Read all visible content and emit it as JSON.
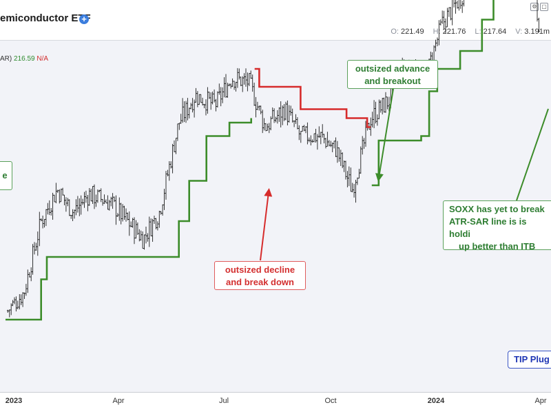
{
  "header": {
    "title": "emiconductor ETF",
    "ohlc": {
      "open_label": "O:",
      "open": "221.49",
      "high_label": "H:",
      "high": "221.76",
      "low_label": "L:",
      "low": "217.64",
      "volume_label": "V:",
      "volume": "3.191m"
    }
  },
  "indicator": {
    "name": "AR)",
    "value": "216.59",
    "na": "N/A"
  },
  "annotations": {
    "advance": [
      "outsized advance",
      "and breakout"
    ],
    "decline": [
      "outsized decline",
      "and break down"
    ],
    "soxx": [
      "SOXX has yet to break",
      "ATR-SAR line is is holdi",
      "up better than ITB"
    ],
    "left_fragment": [
      "e"
    ],
    "tip": "TIP Plug"
  },
  "colors": {
    "background": "#f2f3f8",
    "price": "#1a1a1a",
    "sar_green": "#3c8c2a",
    "sar_red": "#d62b2b",
    "annot_green": "#2e7d32",
    "annot_red": "#d32f2f",
    "annot_blue": "#1e35b4"
  },
  "chart_data": {
    "type": "line",
    "title": "emiconductor ETF",
    "xlabel": "",
    "ylabel": "",
    "x_ticks": [
      "2023",
      "Apr",
      "Jul",
      "Oct",
      "2024",
      "Apr"
    ],
    "series": [
      {
        "name": "",
        "style": "ohlc-bars",
        "values": [
          [
            "2023-01-03",
            158
          ],
          [
            "2023-01-17",
            162
          ],
          [
            "2023-02-01",
            178
          ],
          [
            "2023-02-15",
            185
          ],
          [
            "2023-03-01",
            180
          ],
          [
            "2023-03-15",
            184
          ],
          [
            "2023-04-03",
            182
          ],
          [
            "2023-04-17",
            178
          ],
          [
            "2023-05-01",
            174
          ],
          [
            "2023-05-15",
            180
          ],
          [
            "2023-06-01",
            200
          ],
          [
            "2023-06-15",
            206
          ],
          [
            "2023-07-03",
            204
          ],
          [
            "2023-07-17",
            210
          ],
          [
            "2023-08-01",
            209
          ],
          [
            "2023-08-15",
            199
          ],
          [
            "2023-09-01",
            203
          ],
          [
            "2023-09-15",
            197
          ],
          [
            "2023-10-02",
            197
          ],
          [
            "2023-10-16",
            194
          ],
          [
            "2023-10-30",
            185
          ],
          [
            "2023-11-15",
            201
          ],
          [
            "2023-12-01",
            205
          ],
          [
            "2023-12-15",
            213
          ],
          [
            "2024-01-02",
            210
          ],
          [
            "2024-01-16",
            222
          ],
          [
            "2024-02-01",
            228
          ],
          [
            "2024-02-15",
            233
          ],
          [
            "2024-03-01",
            240
          ],
          [
            "2024-03-15",
            242
          ],
          [
            "2024-04-01",
            240
          ],
          [
            "2024-04-10",
            219
          ]
        ]
      },
      {
        "name": "",
        "style": "stepped-green",
        "values": [
          [
            "2023-01-01",
            156
          ],
          [
            "2023-01-25",
            156
          ],
          [
            "2023-02-01",
            165
          ],
          [
            "2023-02-06",
            170
          ],
          [
            "2023-03-31",
            170
          ],
          [
            "2023-05-18",
            170
          ],
          [
            "2023-06-01",
            178
          ],
          [
            "2023-06-10",
            187
          ],
          [
            "2023-06-25",
            197
          ],
          [
            "2023-07-15",
            200
          ],
          [
            "2023-08-03",
            201
          ]
        ]
      },
      {
        "name": "",
        "style": "stepped-red",
        "values": [
          [
            "2023-08-06",
            212
          ],
          [
            "2023-08-10",
            208
          ],
          [
            "2023-09-05",
            208
          ],
          [
            "2023-09-15",
            203
          ],
          [
            "2023-10-25",
            201
          ],
          [
            "2023-11-12",
            199
          ],
          [
            "2023-11-15",
            199
          ]
        ]
      },
      {
        "name": "",
        "style": "stepped-green",
        "values": [
          [
            "2023-11-16",
            186
          ],
          [
            "2023-11-22",
            196
          ],
          [
            "2023-12-29",
            197
          ],
          [
            "2024-01-05",
            207
          ],
          [
            "2024-01-12",
            212
          ],
          [
            "2024-02-01",
            216
          ],
          [
            "2024-02-20",
            223
          ],
          [
            "2024-03-01",
            230
          ],
          [
            "2024-03-10",
            234
          ],
          [
            "2024-03-15",
            234
          ],
          [
            "2024-04-10",
            234
          ]
        ]
      }
    ]
  }
}
